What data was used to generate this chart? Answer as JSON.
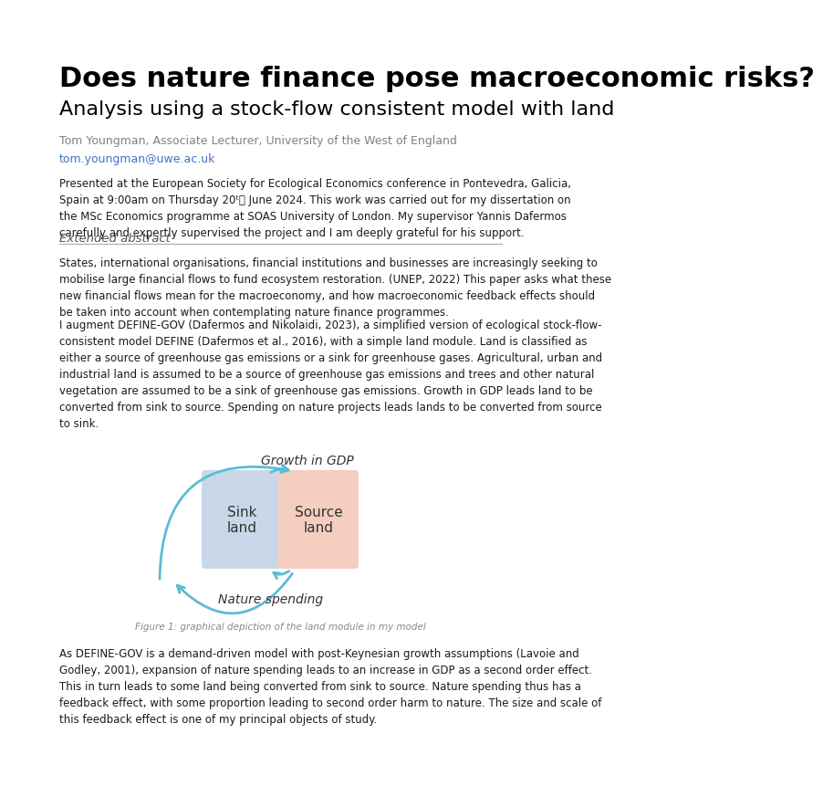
{
  "title_line1": "Does nature finance pose macroeconomic risks?",
  "title_line2": "Analysis using a stock-flow consistent model with land",
  "author": "Tom Youngman, Associate Lecturer, University of the West of England",
  "email": "tom.youngman@uwe.ac.uk",
  "presentation_text": "Presented at the European Society for Ecological Economics conference in Pontevedra, Galicia, Spain at 9:00am on Thursday 20ᵗ˾sthe June 2024. This work was carried out for my dissertation on the MSc Economics programme at SOAS University of London. My supervisor Yannis Dafermos carefully and expertly supervised the project and I am deeply grateful for his support.",
  "section_header": "Extended abstract",
  "abstract_para1": "States, international organisations, financial institutions and businesses are increasingly seeking to mobilise large financial flows to fund ecosystem restoration. (UNEP, 2022) This paper asks what these new financial flows mean for the macroeconomy, and how macroeconomic feedback effects should be taken into account when contemplating nature finance programmes.",
  "abstract_para2": "I augment DEFINE-GOV (Dafermos and Nikolaidi, 2023), a simplified version of ecological stock-flow-consistent model DEFINE (Dafermos et al., 2016), with a simple land module. Land is classified as either a source of greenhouse gas emissions or a sink for greenhouse gases. Agricultural, urban and industrial land is assumed to be a source of greenhouse gas emissions and trees and other natural vegetation are assumed to be a sink of greenhouse gas emissions. Growth in GDP leads land to be converted from sink to source. Spending on nature projects leads lands to be converted from source to sink.",
  "figure_caption": "Figure 1: graphical depiction of the land module in my model",
  "final_para": "As DEFINE-GOV is a demand-driven model with post-Keynesian growth assumptions (Lavoie and Godley, 2001), expansion of nature spending leads to an increase in GDP as a second order effect. This in turn leads to some land being converted from sink to source. Nature spending thus has a feedback effect, with some proportion leading to second order harm to nature. The size and scale of this feedback effect is one of my principal objects of study.",
  "bg_color": "#ffffff",
  "title_color": "#000000",
  "subtitle_color": "#000000",
  "author_color": "#808080",
  "email_color": "#4472c4",
  "body_color": "#1a1a1a",
  "section_color": "#555555",
  "caption_color": "#888888",
  "sink_color": "#c8d8e8",
  "source_color": "#f5cec0",
  "arrow_color": "#5bbcd6",
  "gdp_arrow_color": "#5bbcd6",
  "nature_arrow_color": "#5bbcd6"
}
